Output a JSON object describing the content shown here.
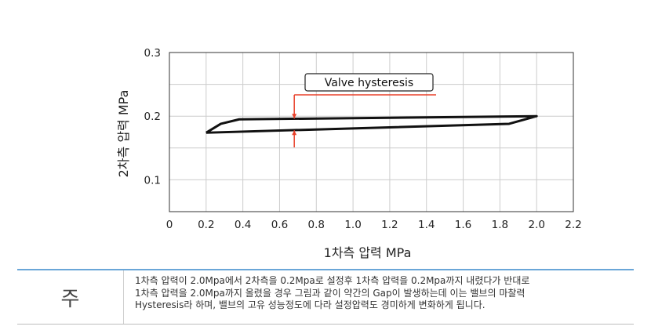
{
  "chart_data": {
    "type": "line",
    "xlabel": "1차측 압력 MPa",
    "ylabel": "2차측 압력 MPa",
    "xlim": [
      0,
      2.2
    ],
    "ylim": [
      0.05,
      0.3
    ],
    "x_ticks": [
      "0",
      "0.2",
      "0.4",
      "0.6",
      "0.8",
      "1.0",
      "1.2",
      "1.4",
      "1.6",
      "1.8",
      "2.0",
      "2.2"
    ],
    "y_ticks": [
      "0.1",
      "0.2",
      "0.3"
    ],
    "grid": true,
    "series": [
      {
        "name": "",
        "x": [
          0.2,
          0.28,
          0.38,
          2.0,
          1.85,
          0.2
        ],
        "y": [
          0.174,
          0.188,
          0.195,
          0.2,
          0.188,
          0.174
        ]
      }
    ],
    "annotation": {
      "text": "Valve hysteresis",
      "x": 0.68,
      "y_top": 0.195,
      "y_bottom": 0.179
    },
    "colors": {
      "line": "#111111",
      "annotation": "#e8402a",
      "grid": "#cccccc"
    }
  },
  "note": {
    "label": "주",
    "lines": [
      "1차측 압력이 2.0Mpa에서 2차측을 0.2Mpa로 설정후 1차측 압력을 0.2Mpa까지 내렸다가 반대로",
      "1차측 압력을 2.0Mpa까지 올렸을 경우 그림과 같이 약간의 Gap이 발생하는데 이는 밸브의 마찰력",
      "Hysteresis라 하며, 밸브의 고유 성능정도에 다라 설정압력도 경미하게 변화하게 됩니다."
    ]
  }
}
